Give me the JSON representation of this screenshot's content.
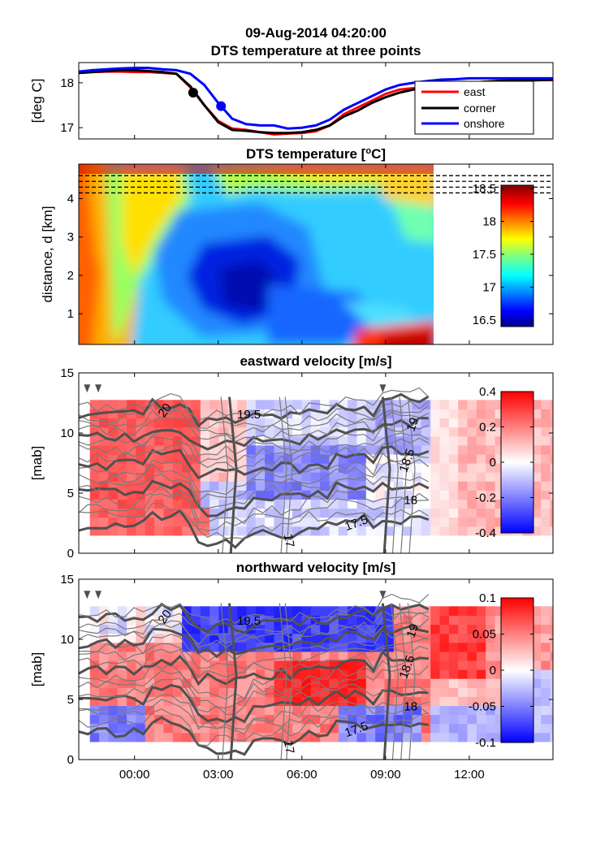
{
  "header": {
    "line1": "09-Aug-2014 04:20:00",
    "line2": "DTS temperature at three points"
  },
  "chart_data": [
    {
      "type": "line",
      "name": "DTS temperature at three points",
      "ylabel": "[deg C]",
      "ylim": [
        16.75,
        18.45
      ],
      "yticks": [
        "17",
        "18"
      ],
      "xlim": [
        -2,
        15
      ],
      "x": [
        -2,
        -1.5,
        -1,
        -0.5,
        0,
        0.5,
        1,
        1.5,
        2,
        2.5,
        3,
        3.5,
        4,
        4.5,
        5,
        5.5,
        6,
        6.5,
        7,
        7.5,
        8,
        8.5,
        9,
        9.5,
        10,
        10.5,
        11,
        11.5,
        12,
        12.5,
        13,
        13.5,
        14,
        14.5,
        15
      ],
      "series": [
        {
          "name": "east",
          "color": "#ff0000",
          "values": [
            18.22,
            18.24,
            18.25,
            18.25,
            18.24,
            18.24,
            18.22,
            18.2,
            17.9,
            17.5,
            17.15,
            16.98,
            16.95,
            16.9,
            16.85,
            16.87,
            16.88,
            16.92,
            17.05,
            17.3,
            17.45,
            17.6,
            17.75,
            17.85,
            17.88,
            17.9,
            17.93,
            17.96,
            18.0,
            18.02,
            18.04,
            18.05,
            18.05,
            18.06,
            18.06
          ]
        },
        {
          "name": "corner",
          "color": "#000000",
          "values": [
            18.22,
            18.24,
            18.26,
            18.28,
            18.28,
            18.26,
            18.24,
            18.2,
            17.92,
            17.5,
            17.12,
            16.95,
            16.93,
            16.9,
            16.88,
            16.88,
            16.9,
            16.95,
            17.05,
            17.25,
            17.38,
            17.55,
            17.68,
            17.78,
            17.85,
            17.9,
            17.93,
            17.96,
            18.0,
            18.02,
            18.04,
            18.05,
            18.06,
            18.06,
            18.07
          ]
        },
        {
          "name": "onshore",
          "color": "#0000ff",
          "values": [
            18.25,
            18.28,
            18.3,
            18.32,
            18.33,
            18.33,
            18.3,
            18.28,
            18.2,
            17.95,
            17.55,
            17.2,
            17.08,
            17.05,
            17.05,
            16.98,
            17.0,
            17.05,
            17.18,
            17.4,
            17.55,
            17.7,
            17.85,
            17.95,
            18.0,
            18.04,
            18.07,
            18.08,
            18.1,
            18.1,
            18.1,
            18.1,
            18.1,
            18.1,
            18.1
          ]
        }
      ],
      "markers": [
        {
          "series": "corner",
          "x": 2.1,
          "y": 17.78
        },
        {
          "series": "onshore",
          "x": 3.1,
          "y": 17.48
        }
      ],
      "legend": [
        "east",
        "corner",
        "onshore"
      ],
      "legend_position": "top-right"
    },
    {
      "type": "heatmap",
      "title": "DTS temperature [°C]",
      "ylabel": "distance, d [km]",
      "ylim": [
        0.2,
        4.9
      ],
      "yticks": [
        "1",
        "2",
        "3",
        "4"
      ],
      "xlim": [
        -2,
        15
      ],
      "data_x_end": 10.5,
      "dashed_lines_y": [
        4.15,
        4.3,
        4.45,
        4.6
      ],
      "colorbar": {
        "min": 16.4,
        "max": 18.55,
        "ticks": [
          "16.5",
          "17",
          "17.5",
          "18",
          "18.5"
        ]
      }
    },
    {
      "type": "heatmap",
      "title": "eastward velocity [m/s]",
      "ylabel": "[mab]",
      "ylim": [
        0,
        15
      ],
      "yticks": [
        "0",
        "5",
        "10",
        "15"
      ],
      "xlim": [
        -2,
        15
      ],
      "contour_labels": [
        "20",
        "19.5",
        "19",
        "18.5",
        "18",
        "17.5",
        "17"
      ],
      "colorbar": {
        "min": -0.4,
        "max": 0.4,
        "ticks": [
          "0.4",
          "0.2",
          "0",
          "-0.2",
          "-0.4"
        ]
      }
    },
    {
      "type": "heatmap",
      "title": "northward velocity [m/s]",
      "ylabel": "[mab]",
      "ylim": [
        0,
        15
      ],
      "yticks": [
        "0",
        "5",
        "10",
        "15"
      ],
      "xlim": [
        -2,
        15
      ],
      "xticks": [
        "00:00",
        "03:00",
        "06:00",
        "09:00",
        "12:00"
      ],
      "xtick_values": [
        0,
        3,
        6,
        9,
        12
      ],
      "contour_labels": [
        "20",
        "19.5",
        "19",
        "18.5",
        "18",
        "17.5",
        "17"
      ],
      "colorbar": {
        "min": -0.1,
        "max": 0.1,
        "ticks": [
          "0.1",
          "0.05",
          "0",
          "-0.05",
          "-0.1"
        ]
      }
    }
  ]
}
